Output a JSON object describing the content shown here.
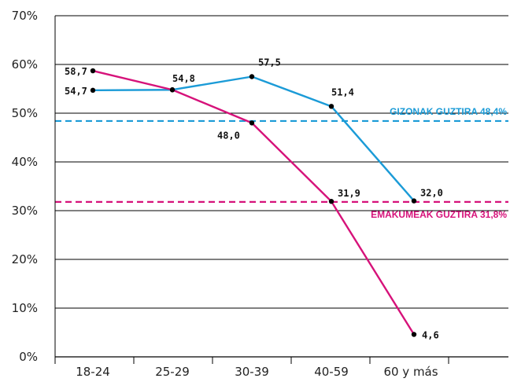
{
  "chart_data": {
    "type": "line",
    "categories": [
      "18-24",
      "25-29",
      "30-39",
      "40-59",
      "60 y más"
    ],
    "series": [
      {
        "color": "#1b9bd7",
        "values": [
          54.7,
          54.8,
          57.5,
          51.4,
          32.0
        ],
        "labels": [
          "54,7",
          "54,8",
          "57,5",
          "51,4",
          "32,0"
        ]
      },
      {
        "color": "#d6127a",
        "values": [
          58.7,
          54.8,
          48.0,
          31.9,
          4.6
        ],
        "labels": [
          "58,7",
          "",
          "48,0",
          "31,9",
          "4,6"
        ]
      }
    ],
    "reference_lines": [
      {
        "label": "GIZONAK GUZTIRA 48,4%",
        "value": 48.4,
        "color": "#1b9bd7",
        "style": "dashed"
      },
      {
        "label": "EMAKUMEAK GUZTIRA 31,8%",
        "value": 31.8,
        "color": "#d6127a",
        "style": "dashed"
      }
    ],
    "y_ticks": [
      "0%",
      "10%",
      "20%",
      "30%",
      "40%",
      "50%",
      "60%",
      "70%"
    ],
    "ylim": [
      0,
      70
    ],
    "grid": true,
    "xlabel": "",
    "ylabel": "",
    "title": ""
  }
}
